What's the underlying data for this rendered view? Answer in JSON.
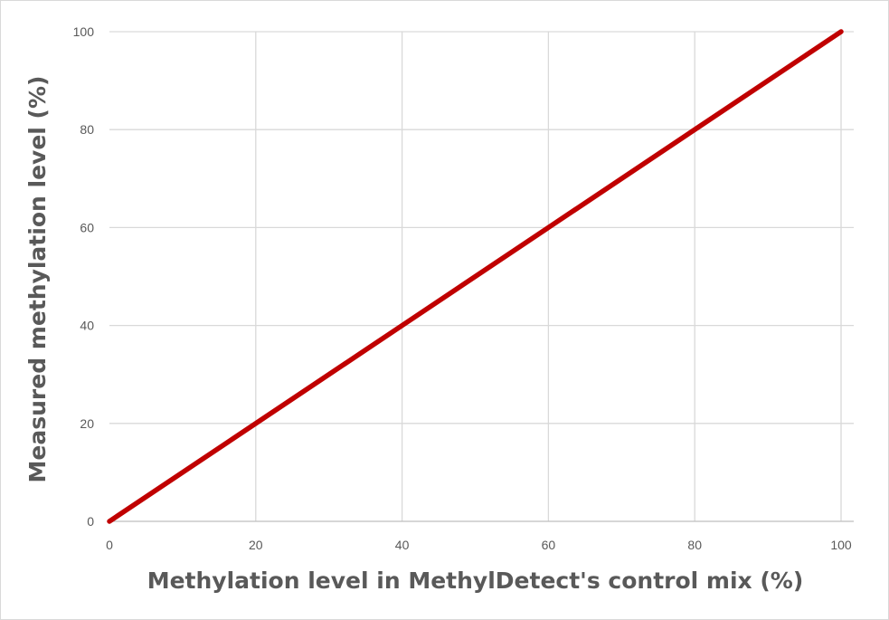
{
  "chart_data": {
    "type": "line",
    "xlabel": "Methylation level in MethylDetect's control mix (%)",
    "ylabel": "Measured methylation level (%)",
    "xlim": [
      0,
      100
    ],
    "ylim": [
      0,
      100
    ],
    "xticks": [
      0,
      20,
      40,
      60,
      80,
      100
    ],
    "yticks": [
      0,
      20,
      40,
      60,
      80,
      100
    ],
    "grid": true,
    "legend": "none",
    "series": [
      {
        "x": [
          0,
          20,
          40,
          60,
          80,
          100
        ],
        "y": [
          0,
          20,
          40,
          60,
          80,
          100
        ],
        "color": "#c00000"
      }
    ],
    "colors": {
      "gridline": "#d9d9d9",
      "axis": "#bfbfbf",
      "text": "#595959"
    }
  }
}
